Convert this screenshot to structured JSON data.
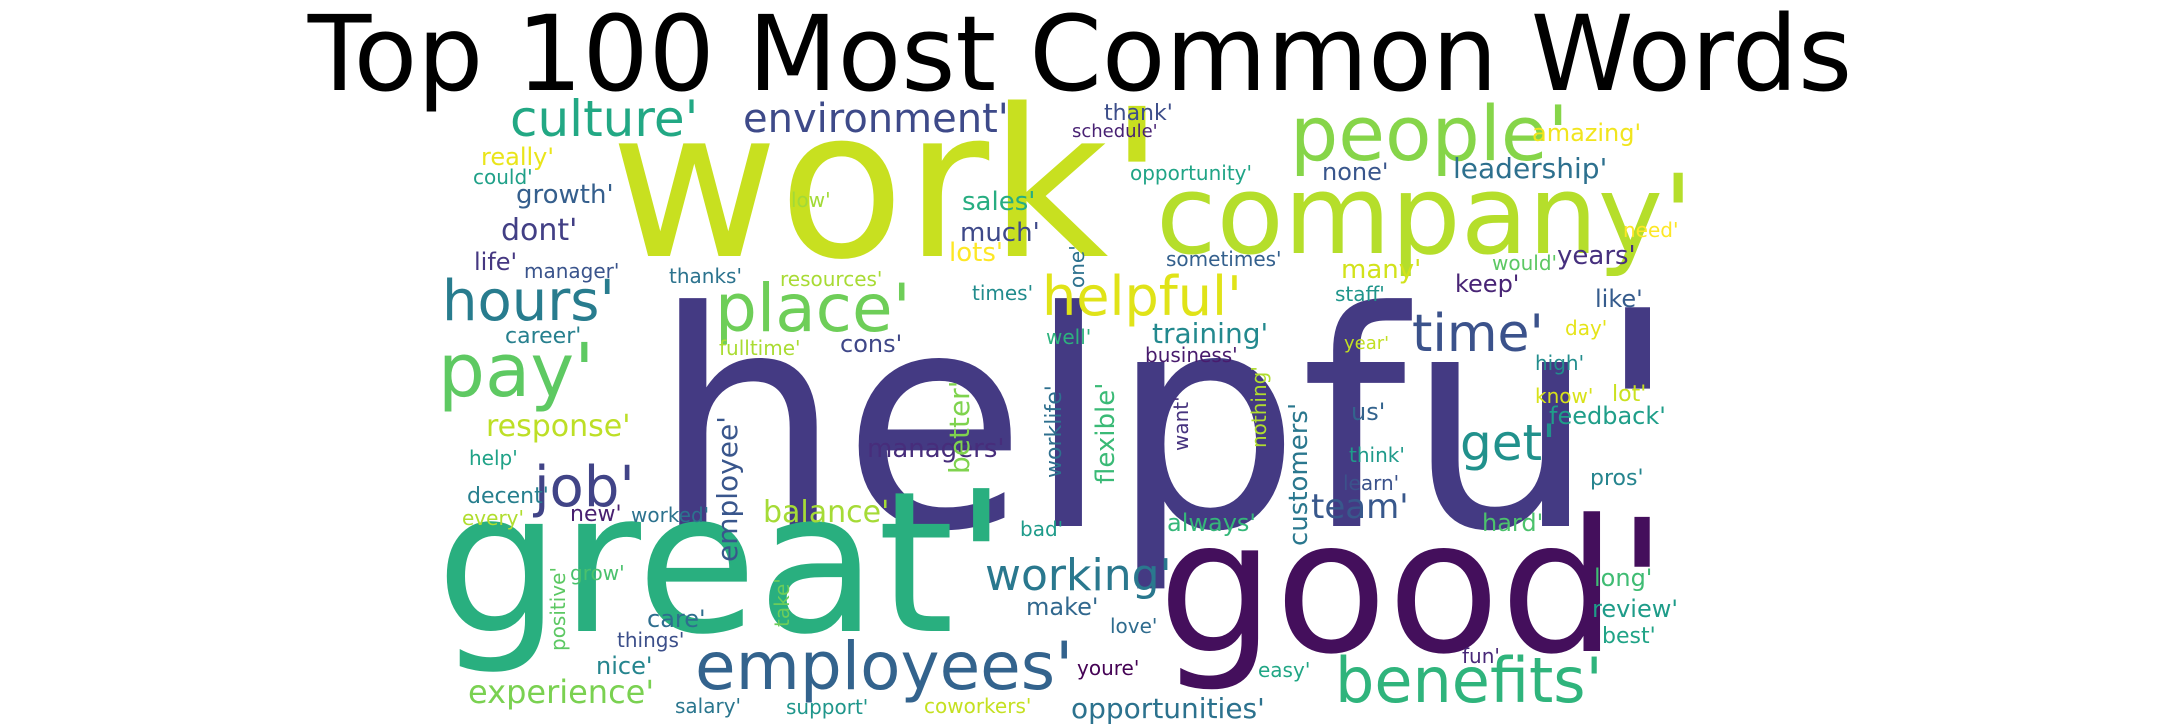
{
  "title": "Top 100 Most Common Words",
  "words": [
    {
      "text": "helpfu'",
      "color": "#443a83"
    },
    {
      "text": "work'",
      "color": "#c8e020"
    },
    {
      "text": "great'",
      "color": "#29af7f"
    },
    {
      "text": "good'",
      "color": "#440f5c"
    },
    {
      "text": "company'",
      "color": "#b5de2b"
    },
    {
      "text": "people'",
      "color": "#86d549"
    },
    {
      "text": "benefits'",
      "color": "#2fb47c"
    },
    {
      "text": "employees'",
      "color": "#33638d"
    },
    {
      "text": "place'",
      "color": "#6ece58"
    },
    {
      "text": "pay'",
      "color": "#5ec962"
    },
    {
      "text": "hours'",
      "color": "#287c8e"
    },
    {
      "text": "time'",
      "color": "#3b528b"
    },
    {
      "text": "helpful'",
      "color": "#e0e318"
    },
    {
      "text": "get'",
      "color": "#21918c"
    },
    {
      "text": "culture'",
      "color": "#22a884"
    },
    {
      "text": "environment'",
      "color": "#3e4a89"
    },
    {
      "text": "job'",
      "color": "#414487"
    },
    {
      "text": "working'",
      "color": "#2a788e"
    },
    {
      "text": "experience'",
      "color": "#7ad151"
    },
    {
      "text": "team'",
      "color": "#38588c"
    },
    {
      "text": "response'",
      "color": "#bddf26"
    },
    {
      "text": "balance'",
      "color": "#a5db36"
    },
    {
      "text": "opportunities'",
      "color": "#2c728e"
    },
    {
      "text": "leadership'",
      "color": "#2d708e"
    },
    {
      "text": "training'",
      "color": "#23898e"
    },
    {
      "text": "managers'",
      "color": "#472d7b"
    },
    {
      "text": "sales'",
      "color": "#27ad81"
    },
    {
      "text": "much'",
      "color": "#3e4989"
    },
    {
      "text": "dont'",
      "color": "#423f85"
    },
    {
      "text": "growth'",
      "color": "#355f8d"
    },
    {
      "text": "keep'",
      "color": "#482475"
    },
    {
      "text": "years'",
      "color": "#46307e"
    },
    {
      "text": "like'",
      "color": "#365c8d"
    },
    {
      "text": "feedback'",
      "color": "#1f9e89"
    },
    {
      "text": "pros'",
      "color": "#25848e"
    },
    {
      "text": "review'",
      "color": "#1e9c89"
    },
    {
      "text": "best'",
      "color": "#20a386"
    },
    {
      "text": "long'",
      "color": "#3fbc73"
    },
    {
      "text": "hard'",
      "color": "#4cc26c"
    },
    {
      "text": "always'",
      "color": "#35b779"
    },
    {
      "text": "make'",
      "color": "#31688e"
    },
    {
      "text": "care'",
      "color": "#2e6e8e"
    },
    {
      "text": "nice'",
      "color": "#25858e"
    },
    {
      "text": "new'",
      "color": "#481f70"
    },
    {
      "text": "cons'",
      "color": "#3f4788"
    },
    {
      "text": "lots'",
      "color": "#fde725"
    },
    {
      "text": "many'",
      "color": "#d2e21b"
    },
    {
      "text": "amazing'",
      "color": "#f1e51d"
    },
    {
      "text": "really'",
      "color": "#eae51a"
    },
    {
      "text": "thank'",
      "color": "#3d4e8a"
    },
    {
      "text": "schedule'",
      "color": "#482173"
    },
    {
      "text": "opportunity'",
      "color": "#20a486"
    },
    {
      "text": "none'",
      "color": "#39568c"
    },
    {
      "text": "low'",
      "color": "#a2da37"
    },
    {
      "text": "could'",
      "color": "#1fa088"
    },
    {
      "text": "life'",
      "color": "#453781"
    },
    {
      "text": "manager'",
      "color": "#3a548c"
    },
    {
      "text": "thanks'",
      "color": "#2c738e"
    },
    {
      "text": "resources'",
      "color": "#a8db34"
    },
    {
      "text": "times'",
      "color": "#228c8d"
    },
    {
      "text": "sometimes'",
      "color": "#34608d"
    },
    {
      "text": "would'",
      "color": "#5cc863"
    },
    {
      "text": "need'",
      "color": "#fde725"
    },
    {
      "text": "staff'",
      "color": "#1f958b"
    },
    {
      "text": "career'",
      "color": "#27808e"
    },
    {
      "text": "fulltime'",
      "color": "#aadc32"
    },
    {
      "text": "well'",
      "color": "#2db27d"
    },
    {
      "text": "business'",
      "color": "#481b6d"
    },
    {
      "text": "day'",
      "color": "#e5e419"
    },
    {
      "text": "year'",
      "color": "#c2df23"
    },
    {
      "text": "high'",
      "color": "#228d8d"
    },
    {
      "text": "know'",
      "color": "#d8e219"
    },
    {
      "text": "lot'",
      "color": "#cae11f"
    },
    {
      "text": "us'",
      "color": "#33638d"
    },
    {
      "text": "think'",
      "color": "#1f9a8a"
    },
    {
      "text": "learn'",
      "color": "#3b528b"
    },
    {
      "text": "help'",
      "color": "#1fa287"
    },
    {
      "text": "decent'",
      "color": "#277f8e"
    },
    {
      "text": "every'",
      "color": "#b0dd2f"
    },
    {
      "text": "worked'",
      "color": "#2c728e"
    },
    {
      "text": "bad'",
      "color": "#1e9b8a"
    },
    {
      "text": "grow'",
      "color": "#4ac16d"
    },
    {
      "text": "things'",
      "color": "#3c4f8a"
    },
    {
      "text": "love'",
      "color": "#2f6c8e"
    },
    {
      "text": "youre'",
      "color": "#440154"
    },
    {
      "text": "easy'",
      "color": "#21a685"
    },
    {
      "text": "fun'",
      "color": "#482878"
    },
    {
      "text": "salary'",
      "color": "#2a768e"
    },
    {
      "text": "support'",
      "color": "#1f968b"
    },
    {
      "text": "coworkers'",
      "color": "#c5e021"
    },
    {
      "text": "one'",
      "color": "#2d718e"
    },
    {
      "text": "better'",
      "color": "#7fd34e"
    },
    {
      "text": "employee'",
      "color": "#39568c"
    },
    {
      "text": "worklife'",
      "color": "#2e6f8e"
    },
    {
      "text": "flexible'",
      "color": "#3aba76"
    },
    {
      "text": "want'",
      "color": "#46337e"
    },
    {
      "text": "nothing'",
      "color": "#b0dd2f"
    },
    {
      "text": "customers'",
      "color": "#2a778e"
    },
    {
      "text": "positive'",
      "color": "#5cc863"
    },
    {
      "text": "take'",
      "color": "#6ccd5a"
    }
  ]
}
